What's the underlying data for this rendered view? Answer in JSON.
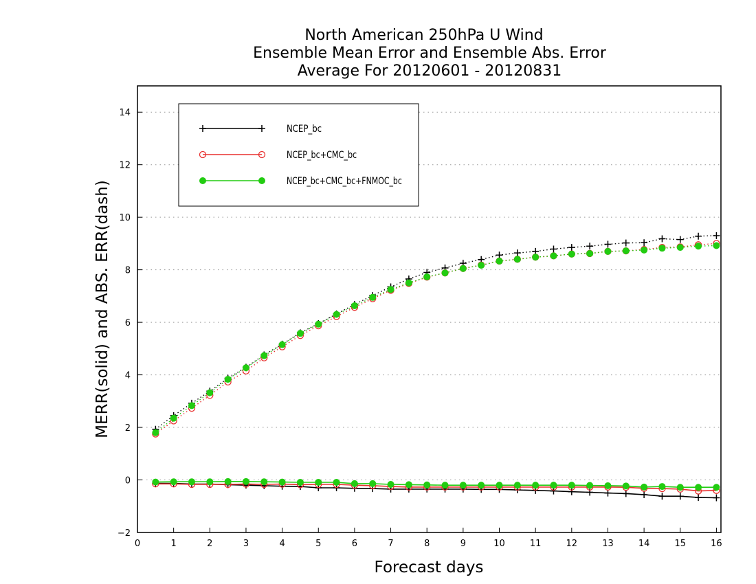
{
  "chart_data": {
    "type": "line",
    "title": "North American 250hPa U Wind",
    "subtitle": "Ensemble Mean Error and Ensemble Abs. Error",
    "subtitle2": "Average For 20120601 - 20120831",
    "xlabel": "Forecast days",
    "ylabel": "MERR(solid) and ABS. ERR(dash)",
    "xlim": [
      0,
      16.125
    ],
    "ylim": [
      -2,
      15
    ],
    "xticks": [
      0,
      1,
      2,
      3,
      4,
      5,
      6,
      7,
      8,
      9,
      10,
      11,
      12,
      13,
      14,
      15,
      16
    ],
    "yticks": [
      -2,
      0,
      2,
      4,
      6,
      8,
      10,
      12,
      14
    ],
    "grid": "horizontal dotted",
    "legend_position": "top-left",
    "x": [
      0.5,
      1.0,
      1.5,
      2.0,
      2.5,
      3.0,
      3.5,
      4.0,
      4.5,
      5.0,
      5.5,
      6.0,
      6.5,
      7.0,
      7.5,
      8.0,
      8.5,
      9.0,
      9.5,
      10.0,
      10.5,
      11.0,
      11.5,
      12.0,
      12.5,
      13.0,
      13.5,
      14.0,
      14.5,
      15.0,
      15.5,
      16.0
    ],
    "series": [
      {
        "name": "NCEP_bc",
        "color": "#000000",
        "marker": "plus",
        "merr": [
          -0.13,
          -0.13,
          -0.16,
          -0.16,
          -0.18,
          -0.2,
          -0.22,
          -0.24,
          -0.25,
          -0.3,
          -0.3,
          -0.32,
          -0.33,
          -0.35,
          -0.35,
          -0.35,
          -0.35,
          -0.35,
          -0.36,
          -0.36,
          -0.38,
          -0.4,
          -0.42,
          -0.45,
          -0.47,
          -0.5,
          -0.52,
          -0.56,
          -0.62,
          -0.62,
          -0.67,
          -0.68
        ],
        "abs_err": [
          1.93,
          2.45,
          2.92,
          3.38,
          3.87,
          4.29,
          4.76,
          5.17,
          5.6,
          5.95,
          6.32,
          6.68,
          7.02,
          7.35,
          7.65,
          7.9,
          8.07,
          8.25,
          8.39,
          8.56,
          8.64,
          8.7,
          8.79,
          8.85,
          8.9,
          8.97,
          9.02,
          9.03,
          9.18,
          9.15,
          9.28,
          9.3
        ]
      },
      {
        "name": "NCEP_bc+CMC_bc",
        "color": "#e8302f",
        "marker": "open-circle",
        "merr": [
          -0.15,
          -0.15,
          -0.17,
          -0.17,
          -0.17,
          -0.16,
          -0.17,
          -0.16,
          -0.18,
          -0.17,
          -0.17,
          -0.2,
          -0.22,
          -0.25,
          -0.27,
          -0.27,
          -0.27,
          -0.27,
          -0.27,
          -0.27,
          -0.27,
          -0.27,
          -0.27,
          -0.27,
          -0.27,
          -0.27,
          -0.28,
          -0.32,
          -0.33,
          -0.35,
          -0.42,
          -0.4
        ],
        "abs_err": [
          1.75,
          2.25,
          2.73,
          3.22,
          3.73,
          4.15,
          4.65,
          5.07,
          5.5,
          5.87,
          6.22,
          6.57,
          6.9,
          7.22,
          7.48,
          7.72,
          7.88,
          8.05,
          8.18,
          8.33,
          8.4,
          8.48,
          8.53,
          8.6,
          8.62,
          8.7,
          8.72,
          8.77,
          8.85,
          8.87,
          8.95,
          9.0
        ]
      },
      {
        "name": "NCEP_bc+CMC_bc+FNMOC_bc",
        "color": "#22cc11",
        "marker": "filled-circle",
        "merr": [
          -0.08,
          -0.07,
          -0.07,
          -0.07,
          -0.06,
          -0.06,
          -0.07,
          -0.08,
          -0.09,
          -0.09,
          -0.09,
          -0.14,
          -0.14,
          -0.17,
          -0.18,
          -0.19,
          -0.2,
          -0.2,
          -0.2,
          -0.2,
          -0.2,
          -0.2,
          -0.2,
          -0.2,
          -0.21,
          -0.22,
          -0.23,
          -0.27,
          -0.25,
          -0.28,
          -0.28,
          -0.28
        ],
        "abs_err": [
          1.8,
          2.35,
          2.83,
          3.32,
          3.83,
          4.27,
          4.73,
          5.15,
          5.58,
          5.93,
          6.3,
          6.63,
          6.95,
          7.25,
          7.5,
          7.73,
          7.88,
          8.05,
          8.17,
          8.33,
          8.4,
          8.48,
          8.53,
          8.6,
          8.62,
          8.7,
          8.72,
          8.75,
          8.82,
          8.85,
          8.9,
          8.92
        ]
      }
    ]
  }
}
